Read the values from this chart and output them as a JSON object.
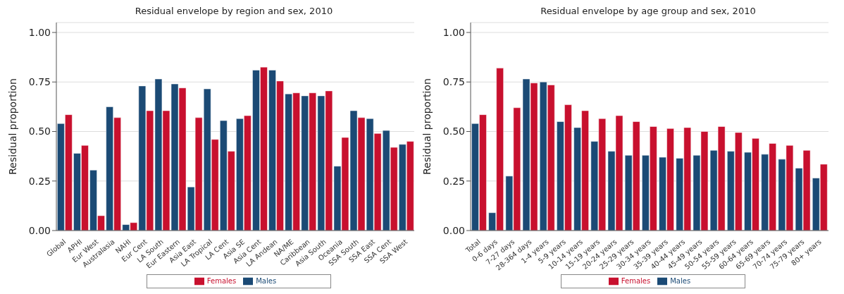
{
  "chart_data": [
    {
      "type": "bar",
      "title": "Residual envelope by region and sex, 2010",
      "ylabel": "Residual proportion",
      "categories": [
        "Global",
        "APHI",
        "Eur West",
        "Australasia",
        "NAHI",
        "Eur Cent",
        "LA South",
        "Eur Eastern",
        "Asia East",
        "LA Tropical",
        "LA Cent",
        "Asia SE",
        "Asia Cent",
        "LA Andean",
        "NA/ME",
        "Caribbean",
        "Asia South",
        "Oceania",
        "SSA South",
        "SSA East",
        "SSA Cent",
        "SSA West"
      ],
      "series": [
        {
          "name": "Males",
          "color": "#1b4a75",
          "values": [
            0.54,
            0.39,
            0.305,
            0.625,
            0.03,
            0.73,
            0.765,
            0.74,
            0.22,
            0.715,
            0.555,
            0.565,
            0.81,
            0.81,
            0.69,
            0.68,
            0.68,
            0.325,
            0.605,
            0.565,
            0.505,
            0.435
          ]
        },
        {
          "name": "Females",
          "color": "#c8102e",
          "values": [
            0.585,
            0.43,
            0.075,
            0.57,
            0.04,
            0.605,
            0.605,
            0.72,
            0.57,
            0.46,
            0.4,
            0.58,
            0.825,
            0.755,
            0.695,
            0.695,
            0.705,
            0.47,
            0.57,
            0.49,
            0.42,
            0.45
          ]
        }
      ],
      "ylim": [
        0,
        1.05
      ],
      "yticks": [
        {
          "value": 0,
          "label": "0.00"
        },
        {
          "value": 0.25,
          "label": "0.25"
        },
        {
          "value": 0.5,
          "label": "0.50"
        },
        {
          "value": 0.75,
          "label": "0.75"
        },
        {
          "value": 1,
          "label": "1.00"
        }
      ],
      "grid": "y",
      "legend": "bottom"
    },
    {
      "type": "bar",
      "title": "Residual envelope by age group and sex, 2010",
      "ylabel": "Residual proportion",
      "categories": [
        "Total",
        "0-6 days",
        "7-27 days",
        "28-364 days",
        "1-4 years",
        "5-9 years",
        "10-14 years",
        "15-19 years",
        "20-24 years",
        "25-29 years",
        "30-34 years",
        "35-39 years",
        "40-44 years",
        "45-49 years",
        "50-54 years",
        "55-59 years",
        "60-64 years",
        "65-69 years",
        "70-74 years",
        "75-79 years",
        "80+ years"
      ],
      "series": [
        {
          "name": "Males",
          "color": "#1b4a75",
          "values": [
            0.54,
            0.09,
            0.275,
            0.765,
            0.75,
            0.55,
            0.52,
            0.45,
            0.4,
            0.38,
            0.38,
            0.37,
            0.365,
            0.38,
            0.405,
            0.4,
            0.395,
            0.385,
            0.36,
            0.315,
            0.265
          ]
        },
        {
          "name": "Females",
          "color": "#c8102e",
          "values": [
            0.585,
            0.82,
            0.62,
            0.745,
            0.735,
            0.635,
            0.605,
            0.565,
            0.58,
            0.55,
            0.525,
            0.515,
            0.52,
            0.5,
            0.525,
            0.495,
            0.465,
            0.44,
            0.43,
            0.405,
            0.335
          ]
        }
      ],
      "ylim": [
        0,
        1.05
      ],
      "yticks": [
        {
          "value": 0,
          "label": "0.00"
        },
        {
          "value": 0.25,
          "label": "0.25"
        },
        {
          "value": 0.5,
          "label": "0.50"
        },
        {
          "value": 0.75,
          "label": "0.75"
        },
        {
          "value": 1,
          "label": "1.00"
        }
      ],
      "grid": "y",
      "legend": "bottom"
    }
  ]
}
